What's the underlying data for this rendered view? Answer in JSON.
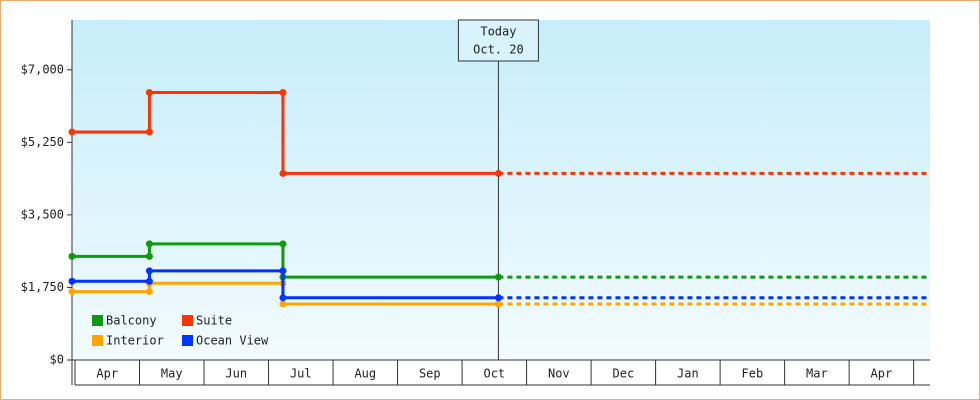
{
  "chart_data": {
    "type": "step-line",
    "categories": [
      "Apr",
      "May",
      "Jun",
      "Jul",
      "Aug",
      "Sep",
      "Oct",
      "Nov",
      "Dec",
      "Jan",
      "Feb",
      "Mar",
      "Apr"
    ],
    "xlim": [
      0,
      13.3
    ],
    "ylim": [
      0,
      8200
    ],
    "yticks": [
      {
        "value": 0,
        "label": "$0"
      },
      {
        "value": 1750,
        "label": "$1,750"
      },
      {
        "value": 3500,
        "label": "$3,500"
      },
      {
        "value": 5250,
        "label": "$5,250"
      },
      {
        "value": 7000,
        "label": "$7,000"
      }
    ],
    "annotation": {
      "x": 6.61,
      "label": [
        "Today",
        "Oct. 20"
      ]
    },
    "legend": "bottom-left",
    "series": [
      {
        "name": "Balcony",
        "color": "#109910",
        "x": [
          0,
          1.2,
          1.2,
          3.27,
          3.27,
          6.61
        ],
        "values": [
          2500,
          2500,
          2800,
          2800,
          2000,
          2000
        ]
      },
      {
        "name": "Suite",
        "color": "#ff3300",
        "x": [
          0,
          1.2,
          1.2,
          3.27,
          3.27,
          6.61
        ],
        "values": [
          5500,
          5500,
          6450,
          6450,
          4500,
          4500
        ]
      },
      {
        "name": "Interior",
        "color": "#ffa500",
        "x": [
          0,
          1.2,
          1.2,
          3.27,
          3.27,
          6.61
        ],
        "values": [
          1650,
          1650,
          1850,
          1850,
          1350,
          1350
        ]
      },
      {
        "name": "Ocean View",
        "color": "#0033ff",
        "x": [
          0,
          1.2,
          1.2,
          3.27,
          3.27,
          6.61
        ],
        "values": [
          1900,
          1900,
          2150,
          2150,
          1500,
          1500
        ]
      }
    ]
  }
}
